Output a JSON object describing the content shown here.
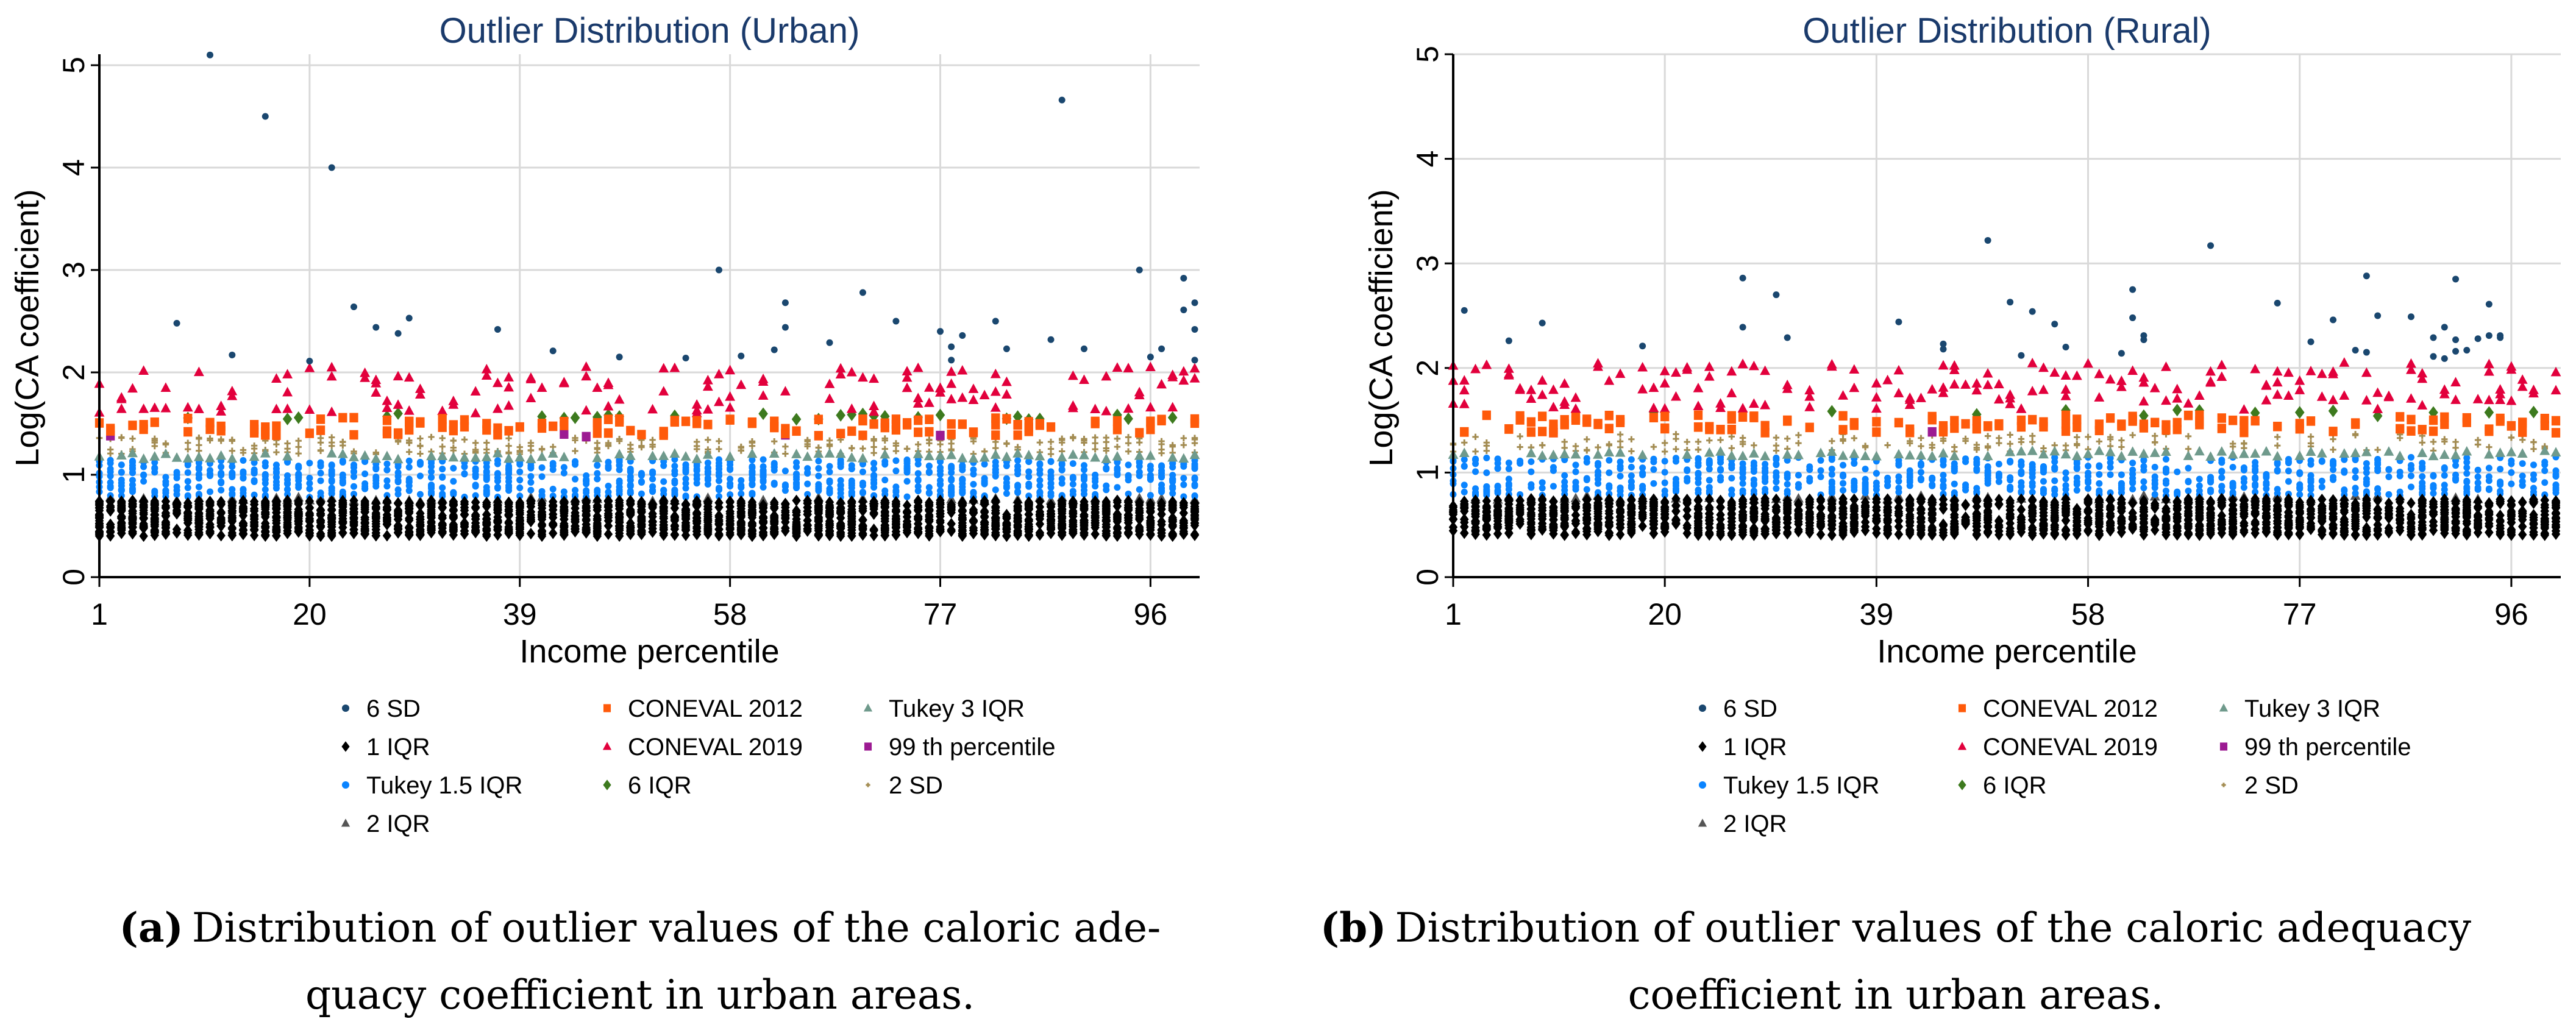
{
  "chart_data": [
    {
      "type": "scatter",
      "title": "Outlier Distribution (Urban)",
      "xlabel": "Income percentile",
      "ylabel": "Log(CA coefficient)",
      "xlim": [
        1,
        100
      ],
      "ylim": [
        0,
        5
      ],
      "xticks": [
        "1",
        "20",
        "39",
        "58",
        "77",
        "96"
      ],
      "yticks": [
        "0",
        "1",
        "2",
        "3",
        "4",
        "5"
      ],
      "grid": true,
      "legend_position": "bottom",
      "caption_label": "(a)",
      "caption_line1": "Distribution of outlier values of the caloric ade-",
      "caption_line2": "quacy coefficient in urban areas.",
      "series": [
        {
          "name": "6 SD",
          "color": "#1a476f",
          "marker": "circle",
          "points": [
            [
              11,
              5.1
            ],
            [
              16,
              4.5
            ],
            [
              22,
              4.0
            ],
            [
              8,
              2.48
            ],
            [
              13,
              2.17
            ],
            [
              20,
              2.11
            ],
            [
              24,
              2.64
            ],
            [
              26,
              2.44
            ],
            [
              28,
              2.38
            ],
            [
              29,
              2.53
            ],
            [
              37,
              2.42
            ],
            [
              42,
              2.21
            ],
            [
              48,
              2.15
            ],
            [
              54,
              2.14
            ],
            [
              57,
              3.0
            ],
            [
              59,
              2.16
            ],
            [
              62,
              2.22
            ],
            [
              63,
              2.68
            ],
            [
              63,
              2.44
            ],
            [
              67,
              2.29
            ],
            [
              70,
              2.78
            ],
            [
              73,
              2.5
            ],
            [
              77,
              2.4
            ],
            [
              78,
              2.25
            ],
            [
              78,
              2.12
            ],
            [
              79,
              2.36
            ],
            [
              82,
              2.5
            ],
            [
              83,
              2.23
            ],
            [
              87,
              2.32
            ],
            [
              88,
              4.66
            ],
            [
              90,
              2.23
            ],
            [
              95,
              3.0
            ],
            [
              96,
              2.15
            ],
            [
              97,
              2.23
            ],
            [
              99,
              2.92
            ],
            [
              99,
              2.61
            ],
            [
              100,
              2.68
            ],
            [
              100,
              2.42
            ],
            [
              100,
              2.12
            ]
          ]
        },
        {
          "name": "CONEVAL 2012",
          "color": "#ff5a0a",
          "marker": "square",
          "value_range": [
            1.38,
            1.56
          ],
          "per_percentile": 2,
          "frequency": 0.7
        },
        {
          "name": "Tukey 3 IQR",
          "color": "#6f9a8c",
          "marker": "triangle",
          "value_range": [
            1.15,
            1.21
          ],
          "per_percentile": 1,
          "frequency": 0.8
        },
        {
          "name": "1 IQR",
          "color": "#000000",
          "marker": "diamond",
          "value_range": [
            0.4,
            0.75
          ],
          "per_percentile": 22,
          "frequency": 1
        },
        {
          "name": "CONEVAL 2019",
          "color": "#e2003c",
          "marker": "triangle",
          "value_range": [
            1.6,
            2.06
          ],
          "per_percentile": 2,
          "frequency": 0.75
        },
        {
          "name": "99 th percentile",
          "color": "#9c1a92",
          "marker": "square",
          "value_range": [
            1.37,
            1.4
          ],
          "per_percentile": 1,
          "frequency": 0.08
        },
        {
          "name": "Tukey 1.5 IQR",
          "color": "#0a84ff",
          "marker": "circle",
          "value_range": [
            0.78,
            1.15
          ],
          "per_percentile": 9,
          "frequency": 1
        },
        {
          "name": "6 IQR",
          "color": "#3d7a1e",
          "marker": "diamond",
          "value_range": [
            1.54,
            1.6
          ],
          "per_percentile": 1,
          "frequency": 0.25
        },
        {
          "name": "2 SD",
          "color": "#a38c52",
          "marker": "plus",
          "value_range": [
            1.2,
            1.37
          ],
          "per_percentile": 3,
          "frequency": 0.85
        },
        {
          "name": "2 IQR",
          "color": "#555555",
          "marker": "triangle",
          "value_range": [
            0.74,
            0.78
          ],
          "per_percentile": 1,
          "frequency": 0.5
        }
      ]
    },
    {
      "type": "scatter",
      "title": "Outlier Distribution (Rural)",
      "xlabel": "Income percentile",
      "ylabel": "Log(CA coefficient)",
      "xlim": [
        1,
        100
      ],
      "ylim": [
        0,
        5
      ],
      "xticks": [
        "1",
        "20",
        "39",
        "58",
        "77",
        "96"
      ],
      "yticks": [
        "0",
        "1",
        "2",
        "3",
        "4",
        "5"
      ],
      "grid": true,
      "legend_position": "bottom",
      "caption_label": "(b)",
      "caption_line1": "Distribution of outlier values of the caloric adequacy",
      "caption_line2": "coefficient in urban areas.",
      "series": [
        {
          "name": "6 SD",
          "color": "#1a476f",
          "marker": "circle",
          "points": [
            [
              2,
              2.55
            ],
            [
              6,
              2.26
            ],
            [
              9,
              2.43
            ],
            [
              18,
              2.21
            ],
            [
              27,
              2.86
            ],
            [
              27,
              2.39
            ],
            [
              30,
              2.7
            ],
            [
              31,
              2.29
            ],
            [
              41,
              2.44
            ],
            [
              45,
              2.23
            ],
            [
              45,
              2.18
            ],
            [
              49,
              3.22
            ],
            [
              51,
              2.63
            ],
            [
              52,
              2.12
            ],
            [
              53,
              2.54
            ],
            [
              55,
              2.42
            ],
            [
              56,
              2.2
            ],
            [
              61,
              2.14
            ],
            [
              62,
              2.75
            ],
            [
              62,
              2.48
            ],
            [
              63,
              2.31
            ],
            [
              63,
              2.27
            ],
            [
              69,
              3.17
            ],
            [
              75,
              2.62
            ],
            [
              78,
              2.25
            ],
            [
              80,
              2.46
            ],
            [
              82,
              2.17
            ],
            [
              83,
              2.88
            ],
            [
              83,
              2.15
            ],
            [
              84,
              2.5
            ],
            [
              87,
              2.49
            ],
            [
              89,
              2.29
            ],
            [
              89,
              2.11
            ],
            [
              90,
              2.39
            ],
            [
              90,
              2.09
            ],
            [
              91,
              2.85
            ],
            [
              91,
              2.27
            ],
            [
              91,
              2.16
            ],
            [
              92,
              2.17
            ],
            [
              93,
              2.28
            ],
            [
              94,
              2.61
            ],
            [
              94,
              2.31
            ],
            [
              95,
              2.31
            ],
            [
              95,
              2.29
            ]
          ]
        },
        {
          "name": "CONEVAL 2012",
          "color": "#ff5a0a",
          "marker": "square",
          "value_range": [
            1.38,
            1.55
          ],
          "per_percentile": 2,
          "frequency": 0.7
        },
        {
          "name": "Tukey 3 IQR",
          "color": "#6f9a8c",
          "marker": "triangle",
          "value_range": [
            1.15,
            1.21
          ],
          "per_percentile": 1,
          "frequency": 0.8
        },
        {
          "name": "1 IQR",
          "color": "#000000",
          "marker": "diamond",
          "value_range": [
            0.4,
            0.75
          ],
          "per_percentile": 20,
          "frequency": 1
        },
        {
          "name": "CONEVAL 2019",
          "color": "#e2003c",
          "marker": "triangle",
          "value_range": [
            1.6,
            2.05
          ],
          "per_percentile": 2,
          "frequency": 0.8
        },
        {
          "name": "99 th percentile",
          "color": "#9c1a92",
          "marker": "square",
          "value_range": [
            1.37,
            1.4
          ],
          "per_percentile": 1,
          "frequency": 0.05
        },
        {
          "name": "Tukey 1.5 IQR",
          "color": "#0a84ff",
          "marker": "circle",
          "value_range": [
            0.78,
            1.15
          ],
          "per_percentile": 7,
          "frequency": 1
        },
        {
          "name": "6 IQR",
          "color": "#3d7a1e",
          "marker": "diamond",
          "value_range": [
            1.54,
            1.6
          ],
          "per_percentile": 1,
          "frequency": 0.15
        },
        {
          "name": "2 SD",
          "color": "#a38c52",
          "marker": "plus",
          "value_range": [
            1.2,
            1.37
          ],
          "per_percentile": 2,
          "frequency": 0.8
        },
        {
          "name": "2 IQR",
          "color": "#555555",
          "marker": "triangle",
          "value_range": [
            0.74,
            0.78
          ],
          "per_percentile": 1,
          "frequency": 0.4
        }
      ]
    }
  ]
}
